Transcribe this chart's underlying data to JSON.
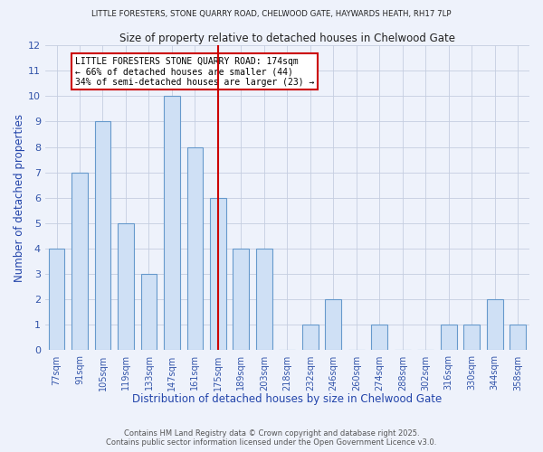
{
  "title_top": "LITTLE FORESTERS, STONE QUARRY ROAD, CHELWOOD GATE, HAYWARDS HEATH, RH17 7LP",
  "title_main": "Size of property relative to detached houses in Chelwood Gate",
  "xlabel": "Distribution of detached houses by size in Chelwood Gate",
  "ylabel": "Number of detached properties",
  "bin_labels": [
    "77sqm",
    "91sqm",
    "105sqm",
    "119sqm",
    "133sqm",
    "147sqm",
    "161sqm",
    "175sqm",
    "189sqm",
    "203sqm",
    "218sqm",
    "232sqm",
    "246sqm",
    "260sqm",
    "274sqm",
    "288sqm",
    "302sqm",
    "316sqm",
    "330sqm",
    "344sqm",
    "358sqm"
  ],
  "bar_heights": [
    4,
    7,
    9,
    5,
    3,
    10,
    8,
    6,
    4,
    4,
    0,
    1,
    2,
    0,
    1,
    0,
    0,
    1,
    1,
    2,
    1
  ],
  "bar_color": "#cfe0f5",
  "bar_edge_color": "#6699cc",
  "reference_line_x_label": "175sqm",
  "reference_line_color": "#cc0000",
  "annotation_text": "LITTLE FORESTERS STONE QUARRY ROAD: 174sqm\n← 66% of detached houses are smaller (44)\n34% of semi-detached houses are larger (23) →",
  "annotation_box_color": "#ffffff",
  "annotation_box_edge": "#cc0000",
  "ylim": [
    0,
    12
  ],
  "yticks": [
    0,
    1,
    2,
    3,
    4,
    5,
    6,
    7,
    8,
    9,
    10,
    11,
    12
  ],
  "footer1": "Contains HM Land Registry data © Crown copyright and database right 2025.",
  "footer2": "Contains public sector information licensed under the Open Government Licence v3.0.",
  "bg_color": "#eef2fb",
  "grid_color": "#c5cee0",
  "bar_width": 0.7
}
